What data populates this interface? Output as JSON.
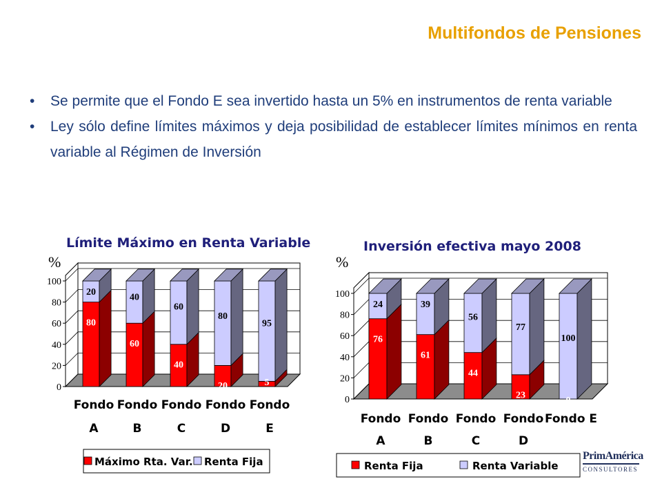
{
  "header": {
    "title": "Multifondos de Pensiones"
  },
  "bullets": [
    "Se permite que el Fondo E sea invertido hasta un 5% en instrumentos de renta variable",
    "Ley sólo define límites máximos y deja posibilidad de establecer límites mínimos en renta variable al Régimen de Inversión"
  ],
  "bullet_glyph": "•",
  "colors": {
    "title": "#E8A000",
    "text": "#1F3D7A",
    "red": "#FF0000",
    "lavender": "#CCCCFF",
    "floor": "#8C8C8C"
  },
  "logo": {
    "name": "PrimAmérica",
    "sub": "CONSULTORES"
  },
  "chart_data": [
    {
      "type": "bar",
      "stacked": true,
      "three_d": true,
      "title": "Límite Máximo en Renta Variable",
      "ylabel": "%",
      "ylim": [
        0,
        100
      ],
      "yticks": [
        0,
        20,
        40,
        60,
        80,
        100
      ],
      "categories": [
        {
          "line1": "Fondo",
          "line2": "A"
        },
        {
          "line1": "Fondo",
          "line2": "B"
        },
        {
          "line1": "Fondo",
          "line2": "C"
        },
        {
          "line1": "Fondo",
          "line2": "D"
        },
        {
          "line1": "Fondo",
          "line2": "E"
        }
      ],
      "series": [
        {
          "name": "Máximo Rta. Var.",
          "color": "#FF0000",
          "values": [
            80,
            60,
            40,
            20,
            5
          ]
        },
        {
          "name": "Renta Fija",
          "color": "#CCCCFF",
          "values": [
            20,
            40,
            60,
            80,
            95
          ]
        }
      ],
      "legend_position": "bottom",
      "grid": true
    },
    {
      "type": "bar",
      "stacked": true,
      "three_d": true,
      "title": "Inversión efectiva mayo 2008",
      "ylabel": "%",
      "ylim": [
        0,
        100
      ],
      "yticks": [
        0,
        20,
        40,
        60,
        80,
        100
      ],
      "categories": [
        {
          "line1": "Fondo",
          "line2": "A"
        },
        {
          "line1": "Fondo",
          "line2": "B"
        },
        {
          "line1": "Fondo",
          "line2": "C"
        },
        {
          "line1": "Fondo",
          "line2": "D"
        },
        {
          "line1": "Fondo E",
          "line2": ""
        }
      ],
      "series": [
        {
          "name": "Renta Fija",
          "color": "#FF0000",
          "values": [
            76,
            61,
            44,
            23,
            0
          ]
        },
        {
          "name": "Renta Variable",
          "color": "#CCCCFF",
          "values": [
            24,
            39,
            56,
            77,
            100
          ]
        }
      ],
      "legend_position": "bottom",
      "grid": true
    }
  ]
}
